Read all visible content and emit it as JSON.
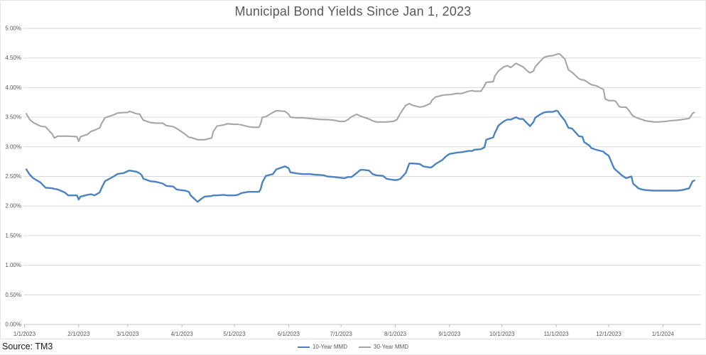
{
  "page": {
    "source_note": "Source: TM3"
  },
  "chart_data": {
    "type": "line",
    "title": "Municipal Bond Yields Since Jan 1, 2023",
    "grid": true,
    "legend_position": "bottom",
    "y_axis": {
      "min": 0,
      "max": 5,
      "step": 0.5,
      "format": "0.00%"
    },
    "y_ticks": [
      "5.00%",
      "4.50%",
      "4.00%",
      "3.50%",
      "3.00%",
      "2.50%",
      "2.00%",
      "1.50%",
      "1.00%",
      "0.50%",
      "0.00%"
    ],
    "x_ticks": [
      "1/1/2023",
      "2/1/2023",
      "3/1/2023",
      "4/1/2023",
      "5/1/2023",
      "6/1/2023",
      "7/1/2023",
      "8/1/2023",
      "9/1/2023",
      "10/1/2023",
      "11/1/2023",
      "12/1/2023",
      "1/1/2024"
    ],
    "colors": {
      "grid": "#d9d9d9",
      "axis": "#c6c6c6",
      "tick": "#bfbfbf",
      "axis_text": "#595959",
      "title_text": "#595959"
    },
    "x": [
      "1/2/23",
      "1/4/23",
      "1/6/23",
      "1/10/23",
      "1/12/23",
      "1/13/23",
      "1/17/23",
      "1/18/23",
      "1/20/23",
      "1/24/23",
      "1/26/23",
      "1/31/23",
      "2/1/23",
      "2/2/23",
      "2/6/23",
      "2/8/23",
      "2/10/23",
      "2/13/23",
      "2/14/23",
      "2/16/23",
      "2/21/23",
      "2/23/23",
      "2/27/23",
      "3/1/23",
      "3/2/23",
      "3/6/23",
      "3/8/23",
      "3/9/23",
      "3/10/23",
      "3/14/23",
      "3/17/23",
      "3/21/23",
      "3/23/23",
      "3/27/23",
      "3/29/23",
      "3/31/23",
      "4/3/23",
      "4/5/23",
      "4/6/23",
      "4/10/23",
      "4/12/23",
      "4/14/23",
      "4/18/23",
      "4/19/23",
      "4/21/23",
      "4/25/23",
      "4/27/23",
      "5/1/23",
      "5/3/23",
      "5/5/23",
      "5/9/23",
      "5/12/23",
      "5/15/23",
      "5/16/23",
      "5/17/23",
      "5/19/23",
      "5/23/23",
      "5/25/23",
      "5/30/23",
      "6/1/23",
      "6/2/23",
      "6/6/23",
      "6/9/23",
      "6/13/23",
      "6/16/23",
      "6/21/23",
      "6/23/23",
      "6/27/23",
      "6/30/23",
      "7/3/23",
      "7/5/23",
      "7/7/23",
      "7/10/23",
      "7/12/23",
      "7/14/23",
      "7/17/23",
      "7/19/23",
      "7/21/23",
      "7/25/23",
      "7/27/23",
      "7/31/23",
      "8/2/23",
      "8/4/23",
      "8/7/23",
      "8/9/23",
      "8/11/23",
      "8/15/23",
      "8/17/23",
      "8/21/23",
      "8/22/23",
      "8/24/23",
      "8/28/23",
      "8/30/23",
      "9/1/23",
      "9/5/23",
      "9/8/23",
      "9/12/23",
      "9/14/23",
      "9/15/23",
      "9/19/23",
      "9/21/23",
      "9/22/23",
      "9/26/23",
      "9/27/23",
      "9/29/23",
      "10/2/23",
      "10/4/23",
      "10/6/23",
      "10/9/23",
      "10/11/23",
      "10/13/23",
      "10/16/23",
      "10/17/23",
      "10/19/23",
      "10/20/23",
      "10/23/23",
      "10/25/23",
      "10/27/23",
      "10/30/23",
      "11/1/23",
      "11/2/23",
      "11/3/23",
      "11/6/23",
      "11/8/23",
      "11/10/23",
      "11/14/23",
      "11/16/23",
      "11/17/23",
      "11/20/23",
      "11/21/23",
      "11/24/23",
      "11/28/23",
      "11/29/23",
      "12/1/23",
      "12/4/23",
      "12/5/23",
      "12/7/23",
      "12/8/23",
      "12/11/23",
      "12/13/23",
      "12/14/23",
      "12/15/23",
      "12/18/23",
      "12/20/23",
      "12/22/23",
      "12/27/23",
      "12/29/23",
      "1/3/24",
      "1/5/24",
      "1/9/24",
      "1/12/24",
      "1/16/24",
      "1/17/24",
      "1/18/24",
      "1/19/24"
    ],
    "series": [
      {
        "name": "10-Year MMD",
        "color": "#4a82c3",
        "values": [
          2.62,
          2.53,
          2.47,
          2.4,
          2.34,
          2.31,
          2.3,
          2.29,
          2.28,
          2.23,
          2.18,
          2.18,
          2.11,
          2.16,
          2.19,
          2.2,
          2.18,
          2.23,
          2.3,
          2.42,
          2.5,
          2.54,
          2.56,
          2.59,
          2.6,
          2.58,
          2.55,
          2.52,
          2.46,
          2.42,
          2.41,
          2.38,
          2.34,
          2.33,
          2.28,
          2.27,
          2.26,
          2.24,
          2.18,
          2.07,
          2.12,
          2.16,
          2.17,
          2.18,
          2.18,
          2.19,
          2.18,
          2.18,
          2.19,
          2.22,
          2.24,
          2.24,
          2.24,
          2.28,
          2.4,
          2.51,
          2.54,
          2.62,
          2.67,
          2.64,
          2.57,
          2.55,
          2.54,
          2.54,
          2.53,
          2.52,
          2.5,
          2.49,
          2.48,
          2.47,
          2.49,
          2.49,
          2.56,
          2.61,
          2.61,
          2.6,
          2.54,
          2.52,
          2.51,
          2.46,
          2.44,
          2.44,
          2.46,
          2.56,
          2.72,
          2.72,
          2.71,
          2.67,
          2.65,
          2.66,
          2.71,
          2.78,
          2.84,
          2.88,
          2.9,
          2.91,
          2.93,
          2.93,
          2.95,
          2.96,
          2.99,
          3.12,
          3.16,
          3.24,
          3.36,
          3.43,
          3.46,
          3.46,
          3.5,
          3.47,
          3.47,
          3.38,
          3.35,
          3.42,
          3.49,
          3.55,
          3.58,
          3.59,
          3.59,
          3.61,
          3.6,
          3.55,
          3.44,
          3.32,
          3.31,
          3.18,
          3.17,
          3.08,
          3.02,
          2.98,
          2.95,
          2.92,
          2.89,
          2.85,
          2.64,
          2.61,
          2.56,
          2.53,
          2.47,
          2.49,
          2.5,
          2.38,
          2.3,
          2.28,
          2.27,
          2.26,
          2.26,
          2.26,
          2.26,
          2.26,
          2.27,
          2.3,
          2.36,
          2.42,
          2.43
        ]
      },
      {
        "name": "30-Year MMD",
        "color": "#a6a6a6",
        "values": [
          3.56,
          3.46,
          3.41,
          3.35,
          3.34,
          3.34,
          3.21,
          3.15,
          3.18,
          3.18,
          3.18,
          3.17,
          3.09,
          3.17,
          3.21,
          3.26,
          3.28,
          3.32,
          3.39,
          3.49,
          3.54,
          3.57,
          3.58,
          3.58,
          3.6,
          3.56,
          3.55,
          3.49,
          3.45,
          3.41,
          3.4,
          3.4,
          3.36,
          3.34,
          3.31,
          3.27,
          3.21,
          3.16,
          3.16,
          3.12,
          3.12,
          3.12,
          3.15,
          3.26,
          3.35,
          3.37,
          3.39,
          3.38,
          3.38,
          3.37,
          3.34,
          3.33,
          3.33,
          3.39,
          3.5,
          3.51,
          3.58,
          3.61,
          3.6,
          3.55,
          3.5,
          3.49,
          3.49,
          3.48,
          3.47,
          3.46,
          3.46,
          3.45,
          3.43,
          3.43,
          3.46,
          3.51,
          3.55,
          3.52,
          3.5,
          3.47,
          3.44,
          3.42,
          3.42,
          3.42,
          3.43,
          3.46,
          3.57,
          3.7,
          3.73,
          3.7,
          3.67,
          3.68,
          3.73,
          3.79,
          3.84,
          3.87,
          3.88,
          3.88,
          3.9,
          3.9,
          3.94,
          3.95,
          3.94,
          3.94,
          4.03,
          4.09,
          4.1,
          4.2,
          4.28,
          4.35,
          4.37,
          4.34,
          4.41,
          4.38,
          4.35,
          4.27,
          4.25,
          4.28,
          4.35,
          4.45,
          4.51,
          4.53,
          4.54,
          4.56,
          4.57,
          4.57,
          4.48,
          4.3,
          4.26,
          4.15,
          4.13,
          4.13,
          4.07,
          4.05,
          4.03,
          3.97,
          3.81,
          3.78,
          3.78,
          3.77,
          3.68,
          3.67,
          3.67,
          3.6,
          3.55,
          3.52,
          3.48,
          3.46,
          3.44,
          3.42,
          3.42,
          3.43,
          3.44,
          3.45,
          3.46,
          3.48,
          3.52,
          3.57,
          3.58
        ]
      }
    ]
  }
}
